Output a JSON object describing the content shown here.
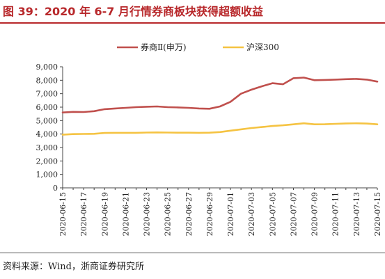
{
  "figure": {
    "title": "图 39：2020 年 6-7 月行情券商板块获得超额收益",
    "source": "资料来源：Wind，浙商证券研究所"
  },
  "chart_data": {
    "type": "line",
    "x": [
      "2020-06-15",
      "2020-06-16",
      "2020-06-17",
      "2020-06-18",
      "2020-06-19",
      "2020-06-20",
      "2020-06-21",
      "2020-06-22",
      "2020-06-23",
      "2020-06-24",
      "2020-06-25",
      "2020-06-26",
      "2020-06-27",
      "2020-06-28",
      "2020-06-29",
      "2020-06-30",
      "2020-07-01",
      "2020-07-02",
      "2020-07-03",
      "2020-07-04",
      "2020-07-05",
      "2020-07-06",
      "2020-07-07",
      "2020-07-08",
      "2020-07-09",
      "2020-07-10",
      "2020-07-11",
      "2020-07-12",
      "2020-07-13",
      "2020-07-14",
      "2020-07-15"
    ],
    "x_tick_labels": [
      "2020-06-15",
      "2020-06-17",
      "2020-06-19",
      "2020-06-21",
      "2020-06-23",
      "2020-06-25",
      "2020-06-27",
      "2020-06-29",
      "2020-07-01",
      "2020-07-03",
      "2020-07-05",
      "2020-07-07",
      "2020-07-09",
      "2020-07-11",
      "2020-07-13",
      "2020-07-15"
    ],
    "series": [
      {
        "name": "券商Ⅱ(申万)",
        "color": "#c0504d",
        "values": [
          5600,
          5650,
          5640,
          5700,
          5850,
          5900,
          5950,
          6000,
          6030,
          6050,
          6000,
          5980,
          5950,
          5900,
          5880,
          6050,
          6400,
          7000,
          7300,
          7550,
          7780,
          7700,
          8150,
          8200,
          8000,
          8020,
          8050,
          8080,
          8100,
          8050,
          7900
        ]
      },
      {
        "name": "沪深300",
        "color": "#f5c342",
        "values": [
          3950,
          4000,
          4010,
          4020,
          4080,
          4090,
          4090,
          4090,
          4110,
          4120,
          4110,
          4100,
          4100,
          4090,
          4100,
          4150,
          4250,
          4350,
          4450,
          4520,
          4600,
          4650,
          4720,
          4800,
          4720,
          4730,
          4760,
          4790,
          4800,
          4780,
          4720
        ]
      }
    ],
    "ylim": [
      0,
      9000
    ],
    "y_ticks": [
      "0",
      "1,000",
      "2,000",
      "3,000",
      "4,000",
      "5,000",
      "6,000",
      "7,000",
      "8,000",
      "9,000"
    ],
    "grid": false,
    "legend_position": "top-center"
  }
}
